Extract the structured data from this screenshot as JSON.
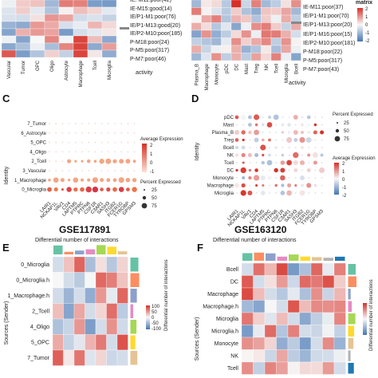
{
  "top_left": {
    "row_labels": [
      "IE: M11:poor(42)",
      "IE-M15:good(14)",
      "IE/P1-M1:poor(76)",
      "IE/P1-M13:good(20)",
      "IE/P2-M10:poor(185)",
      "P-M18:poor(24)",
      "P-M5:poor(317)",
      "P-M7:poor(46)"
    ],
    "col_labels": [
      "Vascular",
      "Tumor",
      "OPC",
      "Oligo",
      "Astrocyte",
      "Macrophage",
      "Tcell",
      "Microglia"
    ],
    "side_label": "activity"
  },
  "top_right": {
    "row_labels": [
      "IE-M11:poor(37)",
      "IE/P1-M1:poor(70)",
      "IE/P1-M13:poor(20)",
      "IE/P1-M16:poor(15)",
      "IE/P2-M10:poor(181)",
      "P-M18:poor(22)",
      "P-M5:poor(317)",
      "P-M7:poor(43)"
    ],
    "col_labels": [
      "Plasma_B",
      "Macrophage",
      "Monocyte",
      "pDC",
      "DC",
      "Mast",
      "Treg",
      "NK",
      "Tcell",
      "Microglia",
      "Bcell"
    ],
    "side_label": "activity",
    "legend_title": "matrix",
    "legend_ticks": [
      "2",
      "1",
      "0",
      "-1",
      "-2"
    ]
  },
  "panel_c": {
    "letter": "C",
    "y_axis": "Identity",
    "rows": [
      "7_Tumor",
      "6_Astrocyte",
      "5_OPC",
      "4_Oligo",
      "2_Tcell",
      "3_Vascular",
      "1_Macrophage",
      "0_Microglia"
    ],
    "genes": [
      "LAIR1",
      "NCKAP1L",
      "VAV1",
      "CD4",
      "LAPTM5",
      "PTPRC",
      "PTPN6",
      "CSF1R",
      "C3AR1",
      "SASH3",
      "ITGB2",
      "FCER1G",
      "TYROBP",
      "GPSM3"
    ],
    "legend_avg_title": "Average Expression",
    "legend_avg_ticks": [
      "2",
      "1",
      "0",
      "-1"
    ],
    "legend_pct_title": "Percent Expressed",
    "legend_pct_ticks": [
      "25",
      "50",
      "75"
    ]
  },
  "panel_d": {
    "letter": "D",
    "y_axis": "Identity",
    "rows": [
      "pDC",
      "Mast",
      "Plasma_B",
      "Treg",
      "Bcell",
      "NK",
      "Tcell",
      "DC",
      "Monocyte",
      "Macrophage",
      "Microglia"
    ],
    "genes": [
      "LAIR1",
      "NCKAP1L",
      "VAV1",
      "CD4",
      "LAPTM5",
      "PTPRC",
      "PTPN6",
      "CSF1R",
      "C3AR1",
      "SASH3",
      "ITGB2",
      "FCER1G",
      "TYROBP",
      "GPSM3"
    ],
    "legend_pct_title": "Percent Expressed",
    "legend_pct_ticks": [
      "25",
      "50",
      "75"
    ],
    "legend_avg_title": "Average Expression",
    "legend_avg_ticks": [
      "2",
      "1",
      "0",
      "-1",
      "-2"
    ]
  },
  "panel_e": {
    "letter": "E",
    "title": "GSE117891",
    "subtitle": "Differential number of interactions",
    "y_axis": "Sources (Sender)",
    "rows": [
      "0_Microglia",
      "0_Microglia.h",
      "1_Macrophage.h",
      "2_Tcell",
      "4_Oligo",
      "5_OPC",
      "7_Tumor"
    ],
    "legend_title": "Differential number of interactions",
    "legend_ticks": [
      "100",
      "50",
      "0",
      "-50",
      "-100"
    ]
  },
  "panel_f": {
    "letter": "F",
    "title": "GSE163120",
    "subtitle": "Differential number of interactions",
    "y_axis": "Sources (Sender)",
    "rows": [
      "Bcell",
      "DC",
      "Macrophage",
      "Macrophage.h",
      "Microglia",
      "Microglia.h",
      "Monocyte",
      "NK",
      "Tcell"
    ],
    "legend_title": "Differential number of interactions"
  },
  "colors": {
    "red": "#d73027",
    "blue": "#4575b4",
    "white": "#f7f7f7",
    "orange": "#f46d43"
  }
}
